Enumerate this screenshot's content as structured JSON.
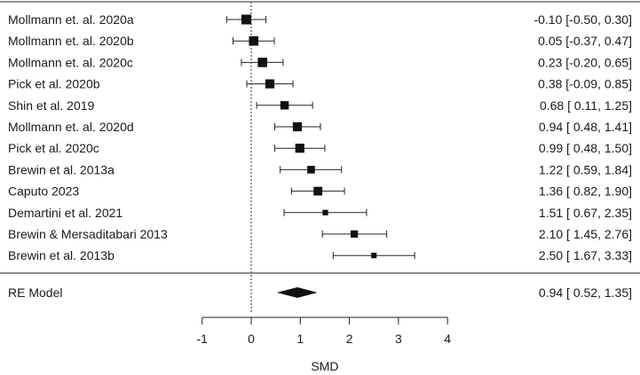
{
  "chart_data": {
    "type": "scatter",
    "subtype": "forest-plot",
    "xlabel": "SMD",
    "xlim": [
      -1,
      4
    ],
    "xticks": [
      -1,
      0,
      1,
      2,
      3,
      4
    ],
    "xtick_labels": [
      "-1",
      "0",
      "1",
      "2",
      "3",
      "4"
    ],
    "reference_line": 0,
    "studies": [
      {
        "label": "Mollmann et. al. 2020a",
        "estimate": -0.1,
        "lower": -0.5,
        "upper": 0.3,
        "ci_text": "-0.10 [-0.50, 0.30]",
        "weight": 1.0
      },
      {
        "label": "Mollmann et. al. 2020b",
        "estimate": 0.05,
        "lower": -0.37,
        "upper": 0.47,
        "ci_text": "0.05 [-0.37, 0.47]",
        "weight": 0.95
      },
      {
        "label": "Mollmann et. al. 2020c",
        "estimate": 0.23,
        "lower": -0.2,
        "upper": 0.65,
        "ci_text": "0.23 [-0.20, 0.65]",
        "weight": 0.95
      },
      {
        "label": "Pick et al. 2020b",
        "estimate": 0.38,
        "lower": -0.09,
        "upper": 0.85,
        "ci_text": "0.38 [-0.09, 0.85]",
        "weight": 0.9
      },
      {
        "label": "Shin et al. 2019",
        "estimate": 0.68,
        "lower": 0.11,
        "upper": 1.25,
        "ci_text": "0.68 [ 0.11, 1.25]",
        "weight": 0.8
      },
      {
        "label": "Mollmann et. al. 2020d",
        "estimate": 0.94,
        "lower": 0.48,
        "upper": 1.41,
        "ci_text": "0.94 [ 0.48, 1.41]",
        "weight": 0.9
      },
      {
        "label": "Pick et al. 2020c",
        "estimate": 0.99,
        "lower": 0.48,
        "upper": 1.5,
        "ci_text": "0.99 [ 0.48, 1.50]",
        "weight": 0.9
      },
      {
        "label": "Brewin et al. 2013a",
        "estimate": 1.22,
        "lower": 0.59,
        "upper": 1.84,
        "ci_text": "1.22 [ 0.59, 1.84]",
        "weight": 0.7
      },
      {
        "label": "Caputo 2023",
        "estimate": 1.36,
        "lower": 0.82,
        "upper": 1.9,
        "ci_text": "1.36 [ 0.82, 1.90]",
        "weight": 0.85
      },
      {
        "label": "Demartini et al. 2021",
        "estimate": 1.51,
        "lower": 0.67,
        "upper": 2.35,
        "ci_text": "1.51 [ 0.67, 2.35]",
        "weight": 0.4
      },
      {
        "label": "Brewin & Mersaditabari 2013",
        "estimate": 2.1,
        "lower": 1.45,
        "upper": 2.76,
        "ci_text": "2.10 [ 1.45, 2.76]",
        "weight": 0.65
      },
      {
        "label": "Brewin et al. 2013b",
        "estimate": 2.5,
        "lower": 1.67,
        "upper": 3.33,
        "ci_text": "2.50 [ 1.67, 3.33]",
        "weight": 0.4
      }
    ],
    "summary": {
      "label": "RE Model",
      "estimate": 0.94,
      "lower": 0.52,
      "upper": 1.35,
      "ci_text": "0.94 [ 0.52, 1.35]"
    }
  }
}
